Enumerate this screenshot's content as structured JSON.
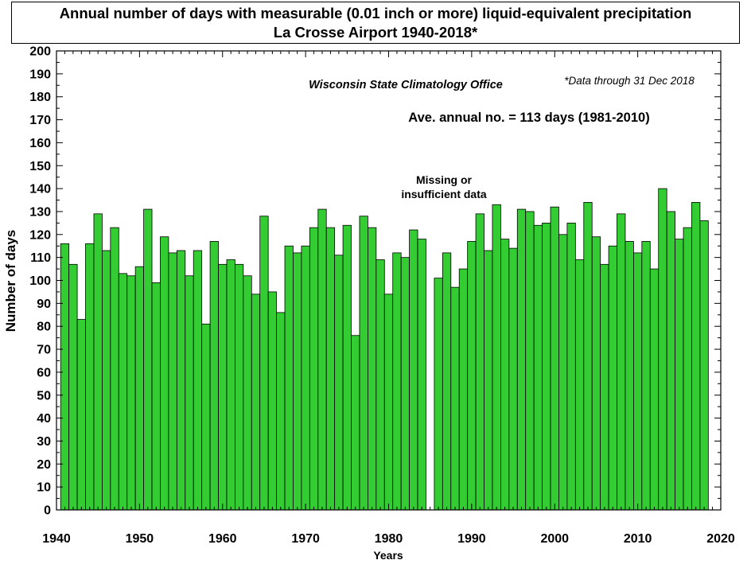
{
  "title": {
    "line1": "Annual number of days with measurable (0.01 inch or more) liquid-equivalent precipitation",
    "line2": "La Crosse Airport  1940-2018*"
  },
  "colors": {
    "bar_fill": "#33cc33",
    "bar_stroke": "#000000"
  },
  "chart_data": {
    "type": "bar",
    "xlabel": "Years",
    "ylabel": "Number of days",
    "xlim": [
      1940,
      2020
    ],
    "ylim": [
      0,
      200
    ],
    "x_ticks": [
      1940,
      1950,
      1960,
      1970,
      1980,
      1990,
      2000,
      2010,
      2020
    ],
    "y_ticks": [
      0,
      10,
      20,
      30,
      40,
      50,
      60,
      70,
      80,
      90,
      100,
      110,
      120,
      130,
      140,
      150,
      160,
      170,
      180,
      190,
      200
    ],
    "grid": false,
    "annotations": {
      "source": "Wisconsin State Climatology Office",
      "note": "*Data through 31 Dec 2018",
      "average": "Ave. annual no. = 113 days (1981-2010)",
      "missing_line1": "Missing or",
      "missing_line2": "insufficient data"
    },
    "years": [
      1941,
      1942,
      1943,
      1944,
      1945,
      1946,
      1947,
      1948,
      1949,
      1950,
      1951,
      1952,
      1953,
      1954,
      1955,
      1956,
      1957,
      1958,
      1959,
      1960,
      1961,
      1962,
      1963,
      1964,
      1965,
      1966,
      1967,
      1968,
      1969,
      1970,
      1971,
      1972,
      1973,
      1974,
      1975,
      1976,
      1977,
      1978,
      1979,
      1980,
      1981,
      1982,
      1983,
      1984,
      1986,
      1987,
      1988,
      1989,
      1990,
      1991,
      1992,
      1993,
      1994,
      1995,
      1996,
      1997,
      1998,
      1999,
      2000,
      2001,
      2002,
      2003,
      2004,
      2005,
      2006,
      2007,
      2008,
      2009,
      2010,
      2011,
      2012,
      2013,
      2014,
      2015,
      2016,
      2017,
      2018
    ],
    "values": [
      116,
      107,
      83,
      116,
      129,
      113,
      123,
      103,
      102,
      106,
      131,
      99,
      119,
      112,
      113,
      102,
      113,
      81,
      117,
      107,
      109,
      107,
      102,
      94,
      128,
      95,
      86,
      115,
      112,
      115,
      123,
      131,
      123,
      111,
      124,
      76,
      128,
      123,
      109,
      94,
      112,
      110,
      122,
      118,
      101,
      112,
      97,
      105,
      117,
      129,
      113,
      133,
      118,
      114,
      131,
      130,
      124,
      125,
      132,
      120,
      125,
      109,
      134,
      119,
      107,
      115,
      129,
      117,
      112,
      117,
      105,
      140,
      130,
      118,
      123,
      134,
      126
    ]
  }
}
